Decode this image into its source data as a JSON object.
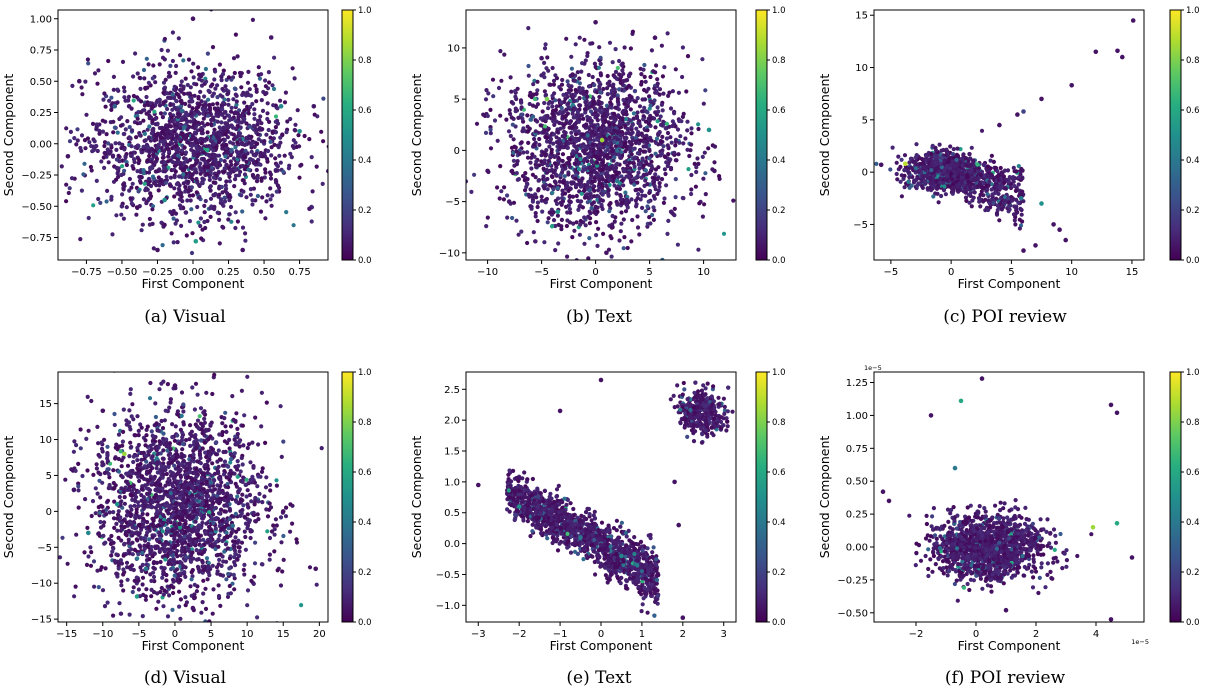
{
  "chart_data": [
    {
      "type": "scatter",
      "caption": "(a)  Visual",
      "xlabel": "First Component",
      "ylabel": "Second Component",
      "xlim": [
        -0.95,
        0.95
      ],
      "ylim": [
        -0.93,
        1.07
      ],
      "xticks": [
        -0.75,
        -0.5,
        -0.25,
        0.0,
        0.25,
        0.5,
        0.75
      ],
      "xtick_labels": [
        "−0.75",
        "−0.50",
        "−0.25",
        "0.00",
        "0.25",
        "0.50",
        "0.75"
      ],
      "yticks": [
        -0.75,
        -0.5,
        -0.25,
        0.0,
        0.25,
        0.5,
        0.75,
        1.0
      ],
      "ytick_labels": [
        "−0.75",
        "−0.50",
        "−0.25",
        "0.00",
        "0.25",
        "0.50",
        "0.75",
        "1.00"
      ],
      "offset_text": "",
      "colorbar": {
        "range": [
          0.0,
          1.0
        ],
        "tick_labels": [
          "0.0",
          "0.2",
          "0.4",
          "0.6",
          "0.8",
          "1.0"
        ],
        "colormap": "viridis"
      },
      "points": [
        {
          "x": 0.0,
          "y": 0.05,
          "c": 0.05
        },
        {
          "x": -0.12,
          "y": 0.12,
          "c": 0.1
        },
        {
          "x": 0.15,
          "y": -0.1,
          "c": 0.08
        },
        {
          "x": 0.3,
          "y": 0.25,
          "c": 0.06
        },
        {
          "x": -0.3,
          "y": -0.2,
          "c": 0.12
        },
        {
          "x": 0.45,
          "y": 0.0,
          "c": 0.04
        },
        {
          "x": -0.45,
          "y": 0.3,
          "c": 0.07
        },
        {
          "x": 0.05,
          "y": 0.55,
          "c": 0.05
        },
        {
          "x": -0.05,
          "y": -0.55,
          "c": 0.09
        },
        {
          "x": 0.62,
          "y": 0.3,
          "c": 0.45
        },
        {
          "x": 0.75,
          "y": 0.1,
          "c": 0.5
        },
        {
          "x": 0.02,
          "y": -0.78,
          "c": 0.55
        },
        {
          "x": 0.1,
          "y": -0.05,
          "c": 0.6
        },
        {
          "x": -0.2,
          "y": -0.45,
          "c": 0.5
        },
        {
          "x": -0.55,
          "y": 0.3,
          "c": 0.3
        },
        {
          "x": 0.0,
          "y": 1.0,
          "c": 0.05
        },
        {
          "x": -0.8,
          "y": 0.5,
          "c": 0.05
        },
        {
          "x": 0.85,
          "y": 0.3,
          "c": 0.06
        },
        {
          "x": 0.35,
          "y": -0.85,
          "c": 0.05
        },
        {
          "x": -0.25,
          "y": -0.85,
          "c": 0.05
        },
        {
          "x": 0.82,
          "y": -0.52,
          "c": 0.06
        },
        {
          "x": -0.88,
          "y": -0.1,
          "c": 0.05
        },
        {
          "x": 0.55,
          "y": 0.85,
          "c": 0.06
        },
        {
          "x": -0.5,
          "y": -0.5,
          "c": 0.1
        }
      ],
      "cloud": {
        "center": [
          0.0,
          0.0
        ],
        "spread": [
          0.35,
          0.3
        ],
        "count": 1700
      }
    },
    {
      "type": "scatter",
      "caption": "(b)  Text",
      "xlabel": "First Component",
      "ylabel": "Second Component",
      "xlim": [
        -12,
        13
      ],
      "ylim": [
        -10.7,
        13.7
      ],
      "xticks": [
        -10,
        -5,
        0,
        5,
        10
      ],
      "xtick_labels": [
        "−10",
        "−5",
        "0",
        "5",
        "10"
      ],
      "yticks": [
        -10,
        -5,
        0,
        5,
        10
      ],
      "ytick_labels": [
        "−10",
        "−5",
        "0",
        "5",
        "10"
      ],
      "offset_text": "",
      "colorbar": {
        "range": [
          0.0,
          1.0
        ],
        "tick_labels": [
          "0.0",
          "0.2",
          "0.4",
          "0.6",
          "0.8",
          "1.0"
        ],
        "colormap": "viridis"
      },
      "points": [
        {
          "x": 0.6,
          "y": 1.0,
          "c": 0.85
        },
        {
          "x": -4.5,
          "y": 5.0,
          "c": 0.8
        },
        {
          "x": 5.5,
          "y": 11.0,
          "c": 0.05
        },
        {
          "x": 10.5,
          "y": 2.0,
          "c": 0.5
        },
        {
          "x": -3.5,
          "y": -6.0,
          "c": 0.5
        },
        {
          "x": 2.0,
          "y": -3.0,
          "c": 0.4
        },
        {
          "x": -6.0,
          "y": 3.0,
          "c": 0.3
        },
        {
          "x": 0.0,
          "y": 12.5,
          "c": 0.05
        },
        {
          "x": -10.0,
          "y": -2.0,
          "c": 0.05
        },
        {
          "x": 11.0,
          "y": -2.0,
          "c": 0.05
        },
        {
          "x": 1.0,
          "y": -10.0,
          "c": 0.05
        },
        {
          "x": -5.0,
          "y": 9.0,
          "c": 0.06
        },
        {
          "x": 7.0,
          "y": -6.0,
          "c": 0.08
        },
        {
          "x": -8.0,
          "y": -5.0,
          "c": 0.07
        }
      ],
      "cloud": {
        "center": [
          0.0,
          0.5
        ],
        "spread": [
          4.2,
          4.0
        ],
        "count": 1900
      }
    },
    {
      "type": "scatter",
      "caption": "(c)  POI review",
      "xlabel": "First Component",
      "ylabel": "Second Component",
      "xlim": [
        -6.4,
        16.0
      ],
      "ylim": [
        -8.4,
        15.5
      ],
      "xticks": [
        -5,
        0,
        5,
        10,
        15
      ],
      "xtick_labels": [
        "−5",
        "0",
        "5",
        "10",
        "15"
      ],
      "yticks": [
        -5,
        0,
        5,
        10,
        15
      ],
      "ytick_labels": [
        "−5",
        "0",
        "5",
        "10",
        "15"
      ],
      "offset_text": "",
      "colorbar": {
        "range": [
          0.0,
          1.0
        ],
        "tick_labels": [
          "0.0",
          "0.2",
          "0.4",
          "0.6",
          "0.8",
          "1.0"
        ],
        "colormap": "viridis"
      },
      "points": [
        {
          "x": 15.1,
          "y": 14.5,
          "c": 0.05
        },
        {
          "x": 12.0,
          "y": 11.5,
          "c": 0.05
        },
        {
          "x": 13.8,
          "y": 11.6,
          "c": 0.05
        },
        {
          "x": 14.2,
          "y": 11.0,
          "c": 0.05
        },
        {
          "x": 10.0,
          "y": 8.3,
          "c": 0.05
        },
        {
          "x": 7.5,
          "y": 7.0,
          "c": 0.05
        },
        {
          "x": 6.0,
          "y": 5.8,
          "c": 0.2
        },
        {
          "x": 5.5,
          "y": 5.5,
          "c": 0.05
        },
        {
          "x": 4.0,
          "y": 4.5,
          "c": 0.05
        },
        {
          "x": 8.5,
          "y": -5.0,
          "c": 0.05
        },
        {
          "x": 9.0,
          "y": -5.5,
          "c": 0.05
        },
        {
          "x": 9.5,
          "y": -6.5,
          "c": 0.05
        },
        {
          "x": 7.0,
          "y": -7.0,
          "c": 0.05
        },
        {
          "x": 6.0,
          "y": -7.5,
          "c": 0.05
        },
        {
          "x": 7.5,
          "y": -3.0,
          "c": 0.5
        },
        {
          "x": 5.8,
          "y": -2.5,
          "c": 0.4
        },
        {
          "x": -3.8,
          "y": 0.8,
          "c": 0.9
        },
        {
          "x": -5.8,
          "y": 0.7,
          "c": 0.05
        }
      ],
      "cloud": {
        "shape": "wedge",
        "count": 1300
      }
    },
    {
      "type": "scatter",
      "caption": "(d)  Visual",
      "xlabel": "First Component",
      "ylabel": "Second Component",
      "xlim": [
        -16.2,
        21.2
      ],
      "ylim": [
        -15.4,
        19.4
      ],
      "xticks": [
        -15,
        -10,
        -5,
        0,
        5,
        10,
        15,
        20
      ],
      "xtick_labels": [
        "−15",
        "−10",
        "−5",
        "0",
        "5",
        "10",
        "15",
        "20"
      ],
      "yticks": [
        -15,
        -10,
        -5,
        0,
        5,
        10,
        15
      ],
      "ytick_labels": [
        "−15",
        "−10",
        "−5",
        "0",
        "5",
        "10",
        "15"
      ],
      "offset_text": "",
      "colorbar": {
        "range": [
          0.0,
          1.0
        ],
        "tick_labels": [
          "0.0",
          "0.2",
          "0.4",
          "0.6",
          "0.8",
          "1.0"
        ],
        "colormap": "viridis"
      },
      "points": [
        {
          "x": -7.0,
          "y": 8.0,
          "c": 0.85
        },
        {
          "x": 19.5,
          "y": -8.0,
          "c": 0.05
        },
        {
          "x": -14.0,
          "y": 3.0,
          "c": 0.05
        },
        {
          "x": 0.0,
          "y": 17.5,
          "c": 0.05
        },
        {
          "x": 2.5,
          "y": -13.5,
          "c": 0.05
        },
        {
          "x": -12.0,
          "y": -3.0,
          "c": 0.45
        },
        {
          "x": -8.0,
          "y": 1.0,
          "c": 0.5
        },
        {
          "x": 5.0,
          "y": 4.0,
          "c": 0.3
        },
        {
          "x": 8.0,
          "y": -2.0,
          "c": 0.35
        },
        {
          "x": -4.0,
          "y": -8.0,
          "c": 0.4
        },
        {
          "x": 15.0,
          "y": 0.0,
          "c": 0.05
        },
        {
          "x": -10.0,
          "y": 14.0,
          "c": 0.05
        }
      ],
      "cloud": {
        "center": [
          0.5,
          1.0
        ],
        "spread": [
          6.0,
          6.5
        ],
        "count": 2100
      }
    },
    {
      "type": "scatter",
      "caption": "(e)  Text",
      "xlabel": "First Component",
      "ylabel": "Second Component",
      "xlim": [
        -3.3,
        3.3
      ],
      "ylim": [
        -1.27,
        2.78
      ],
      "xticks": [
        -3,
        -2,
        -1,
        0,
        1,
        2,
        3
      ],
      "xtick_labels": [
        "−3",
        "−2",
        "−1",
        "0",
        "1",
        "2",
        "3"
      ],
      "yticks": [
        -1.0,
        -0.5,
        0.0,
        0.5,
        1.0,
        1.5,
        2.0,
        2.5
      ],
      "ytick_labels": [
        "−1.0",
        "−0.5",
        "0.0",
        "0.5",
        "1.0",
        "1.5",
        "2.0",
        "2.5"
      ],
      "offset_text": "",
      "colorbar": {
        "range": [
          0.0,
          1.0
        ],
        "tick_labels": [
          "0.0",
          "0.2",
          "0.4",
          "0.6",
          "0.8",
          "1.0"
        ],
        "colormap": "viridis"
      },
      "points": [
        {
          "x": 0.0,
          "y": 2.65,
          "c": 0.05
        },
        {
          "x": -1.0,
          "y": 2.15,
          "c": 0.05
        },
        {
          "x": -3.0,
          "y": 0.95,
          "c": 0.05
        },
        {
          "x": 2.0,
          "y": -1.2,
          "c": 0.05
        },
        {
          "x": 1.8,
          "y": 1.0,
          "c": 0.05
        },
        {
          "x": 1.9,
          "y": 0.3,
          "c": 0.05
        },
        {
          "x": -2.0,
          "y": 0.6,
          "c": 0.5
        },
        {
          "x": 0.5,
          "y": -0.2,
          "c": 0.45
        },
        {
          "x": -0.5,
          "y": 0.1,
          "c": 0.4
        }
      ],
      "cloud": {
        "shape": "band+cluster",
        "count": 1800
      }
    },
    {
      "type": "scatter",
      "caption": "(f)  POI review",
      "xlabel": "First Component",
      "ylabel": "Second Component",
      "xlim": [
        -3.4,
        5.6
      ],
      "ylim": [
        -0.57,
        1.33
      ],
      "xticks": [
        -2,
        0,
        2,
        4
      ],
      "xtick_labels": [
        "−2",
        "0",
        "2",
        "4"
      ],
      "yticks": [
        -0.5,
        -0.25,
        0.0,
        0.25,
        0.5,
        0.75,
        1.0,
        1.25
      ],
      "ytick_labels": [
        "−0.50",
        "−0.25",
        "0.00",
        "0.25",
        "0.50",
        "0.75",
        "1.00",
        "1.25"
      ],
      "offset_text": "1e−5",
      "colorbar": {
        "range": [
          0.0,
          1.0
        ],
        "tick_labels": [
          "0.0",
          "0.2",
          "0.4",
          "0.6",
          "0.8",
          "1.0"
        ],
        "colormap": "viridis"
      },
      "points": [
        {
          "x": 0.2,
          "y": 1.28,
          "c": 0.05
        },
        {
          "x": -0.5,
          "y": 1.11,
          "c": 0.6
        },
        {
          "x": -1.5,
          "y": 1.0,
          "c": 0.05
        },
        {
          "x": 4.5,
          "y": 1.08,
          "c": 0.05
        },
        {
          "x": 4.7,
          "y": 1.02,
          "c": 0.05
        },
        {
          "x": 4.7,
          "y": 0.18,
          "c": 0.6
        },
        {
          "x": 3.9,
          "y": 0.15,
          "c": 0.85
        },
        {
          "x": 5.2,
          "y": -0.08,
          "c": 0.05
        },
        {
          "x": 4.5,
          "y": -0.55,
          "c": 0.05
        },
        {
          "x": -2.9,
          "y": 0.35,
          "c": 0.05
        },
        {
          "x": -3.1,
          "y": 0.42,
          "c": 0.05
        },
        {
          "x": 1.0,
          "y": -0.48,
          "c": 0.05
        },
        {
          "x": -0.7,
          "y": 0.6,
          "c": 0.4
        }
      ],
      "cloud": {
        "center": [
          0.4,
          0.0
        ],
        "spread": [
          0.9,
          0.12
        ],
        "count": 1300
      }
    }
  ]
}
